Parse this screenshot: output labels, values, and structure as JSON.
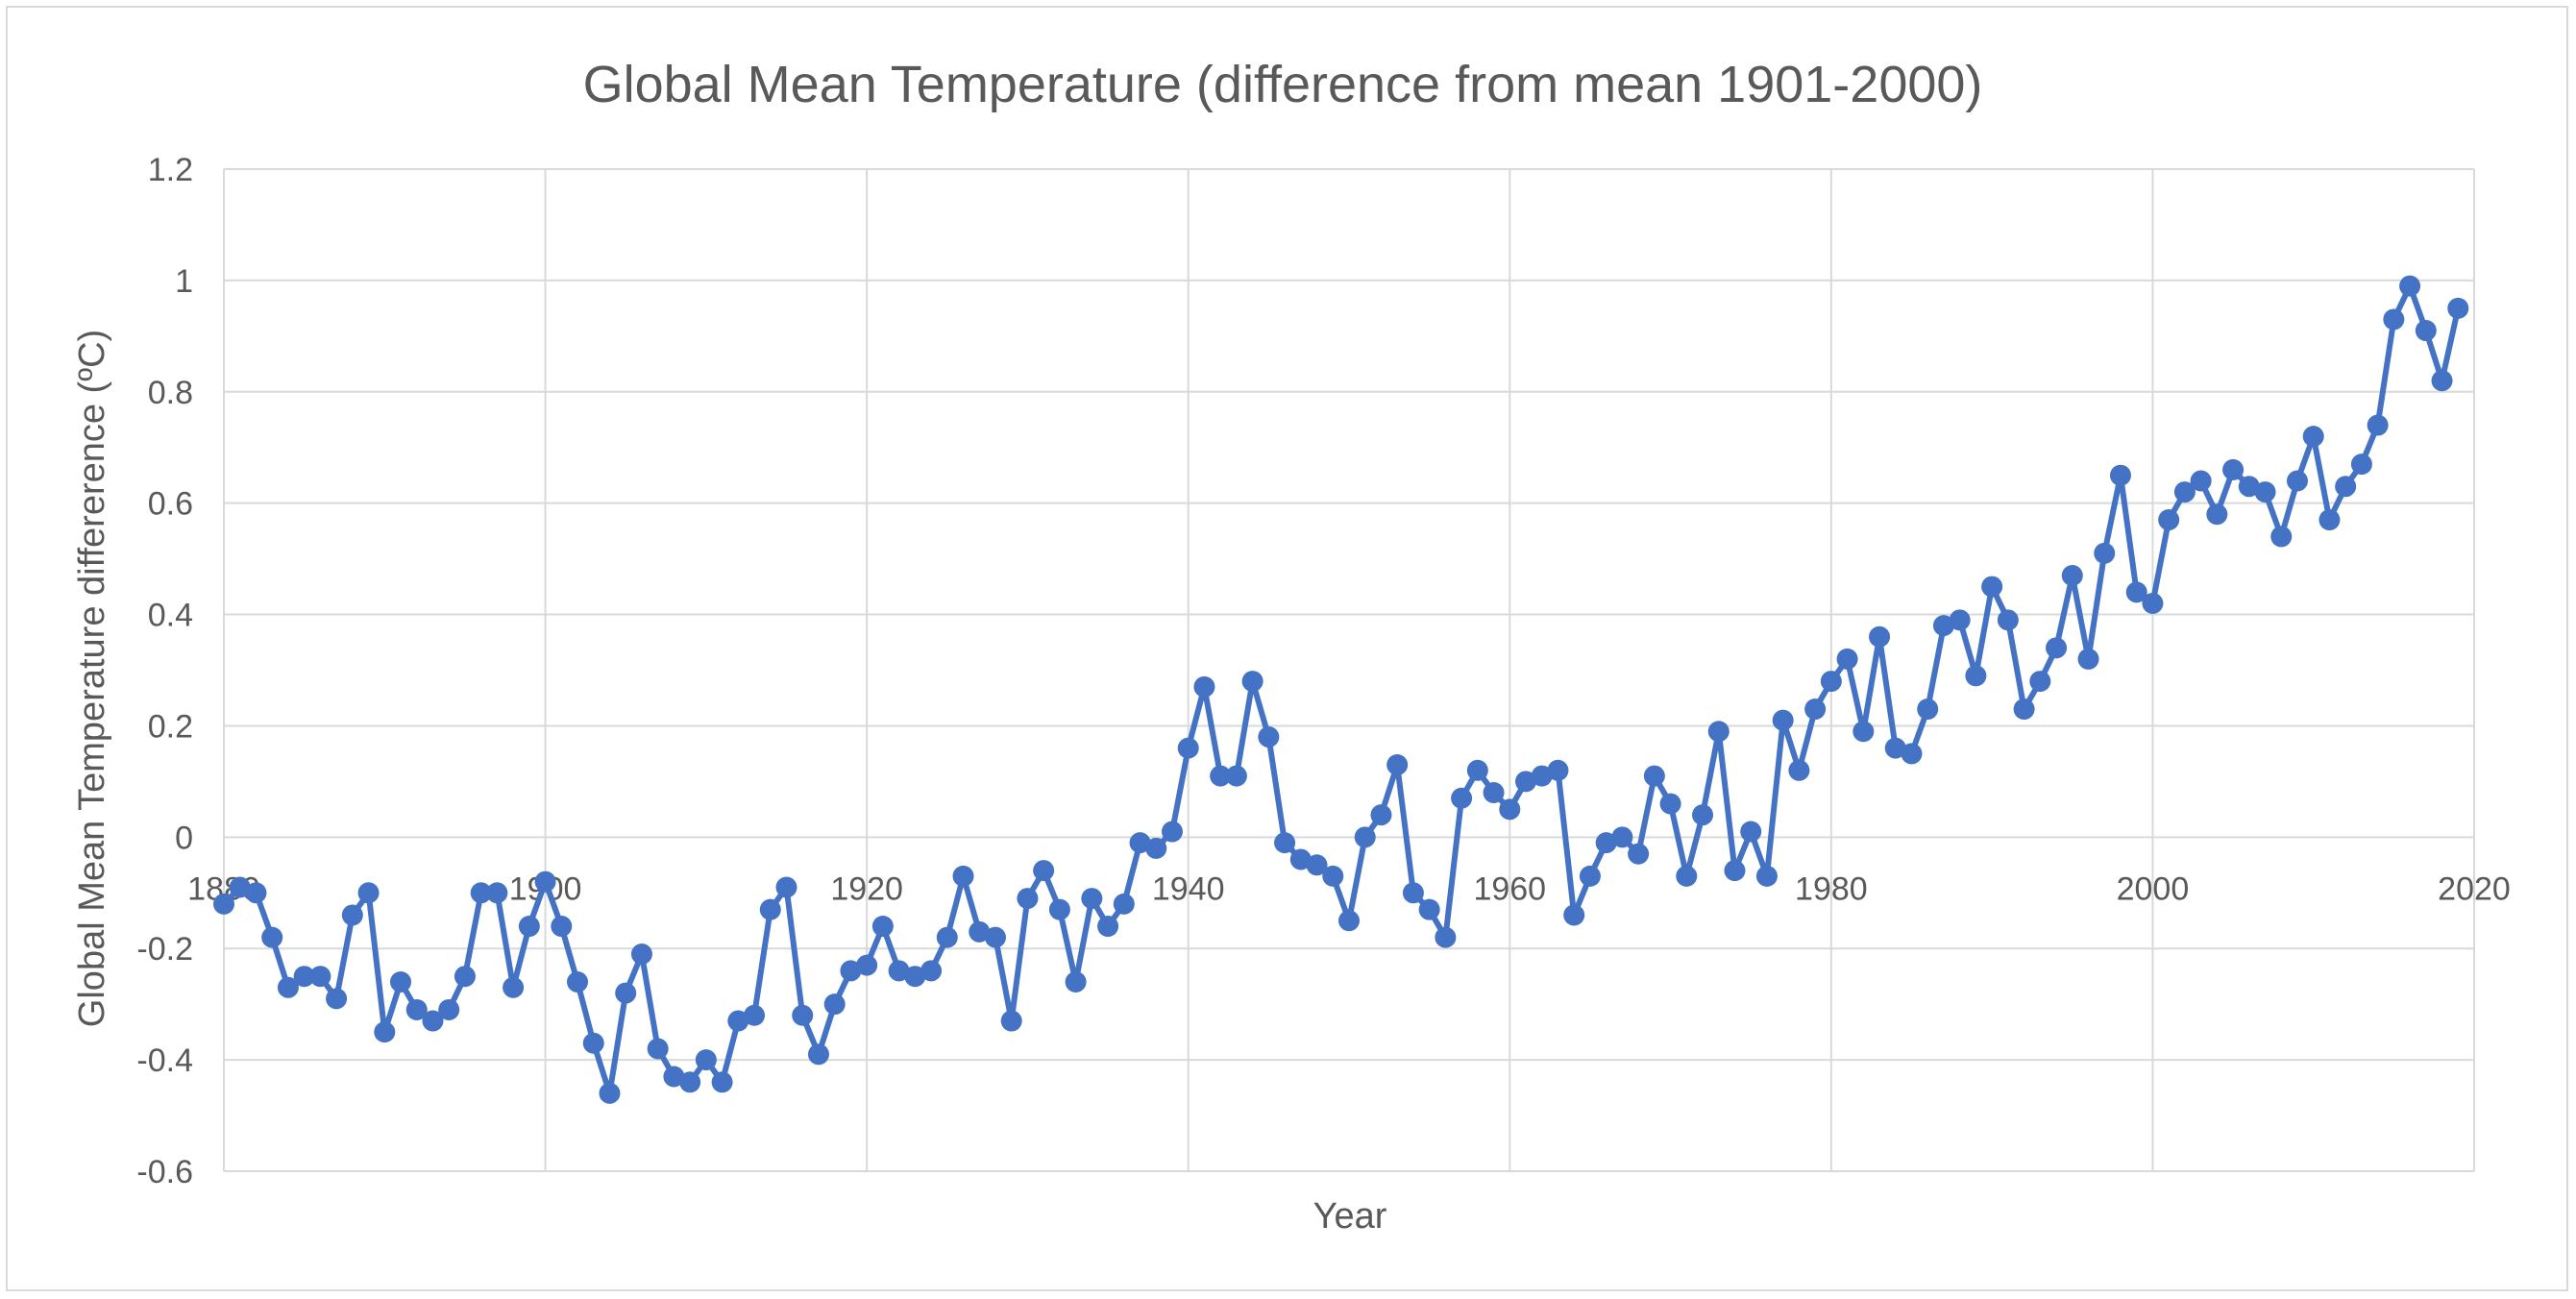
{
  "chart_data": {
    "type": "line",
    "title": "Global Mean Temperature (difference from mean 1901-2000)",
    "xlabel": "Year",
    "ylabel": "Global Mean Temperature differerence (ºC)",
    "xlim": [
      1880,
      2020
    ],
    "ylim": [
      -0.6,
      1.2
    ],
    "xticks": [
      1880,
      1900,
      1920,
      1940,
      1960,
      1980,
      2000,
      2020
    ],
    "yticks": [
      1.2,
      1,
      0.8,
      0.6,
      0.4,
      0.2,
      0,
      -0.2,
      -0.4,
      -0.6
    ],
    "xtick_labels": [
      "1880",
      "1900",
      "1920",
      "1940",
      "1960",
      "1980",
      "2000",
      "2020"
    ],
    "ytick_labels": [
      "1.2",
      "1",
      "0.8",
      "0.6",
      "0.4",
      "0.2",
      "0",
      "-0.2",
      "-0.4",
      "-0.6"
    ],
    "grid": true,
    "legend": "none",
    "series_color": "#4472c4",
    "series": [
      {
        "x": [
          1880,
          1881,
          1882,
          1883,
          1884,
          1885,
          1886,
          1887,
          1888,
          1889,
          1890,
          1891,
          1892,
          1893,
          1894,
          1895,
          1896,
          1897,
          1898,
          1899,
          1900,
          1901,
          1902,
          1903,
          1904,
          1905,
          1906,
          1907,
          1908,
          1909,
          1910,
          1911,
          1912,
          1913,
          1914,
          1915,
          1916,
          1917,
          1918,
          1919,
          1920,
          1921,
          1922,
          1923,
          1924,
          1925,
          1926,
          1927,
          1928,
          1929,
          1930,
          1931,
          1932,
          1933,
          1934,
          1935,
          1936,
          1937,
          1938,
          1939,
          1940,
          1941,
          1942,
          1943,
          1944,
          1945,
          1946,
          1947,
          1948,
          1949,
          1950,
          1951,
          1952,
          1953,
          1954,
          1955,
          1956,
          1957,
          1958,
          1959,
          1960,
          1961,
          1962,
          1963,
          1964,
          1965,
          1966,
          1967,
          1968,
          1969,
          1970,
          1971,
          1972,
          1973,
          1974,
          1975,
          1976,
          1977,
          1978,
          1979,
          1980,
          1981,
          1982,
          1983,
          1984,
          1985,
          1986,
          1987,
          1988,
          1989,
          1990,
          1991,
          1992,
          1993,
          1994,
          1995,
          1996,
          1997,
          1998,
          1999,
          2000,
          2001,
          2002,
          2003,
          2004,
          2005,
          2006,
          2007,
          2008,
          2009,
          2010,
          2011,
          2012,
          2013,
          2014,
          2015,
          2016,
          2017,
          2018,
          2019
        ],
        "y": [
          -0.12,
          -0.09,
          -0.1,
          -0.18,
          -0.27,
          -0.25,
          -0.25,
          -0.29,
          -0.14,
          -0.1,
          -0.35,
          -0.26,
          -0.31,
          -0.33,
          -0.31,
          -0.25,
          -0.1,
          -0.1,
          -0.27,
          -0.16,
          -0.08,
          -0.16,
          -0.26,
          -0.37,
          -0.46,
          -0.28,
          -0.21,
          -0.38,
          -0.43,
          -0.44,
          -0.4,
          -0.44,
          -0.33,
          -0.32,
          -0.13,
          -0.09,
          -0.32,
          -0.39,
          -0.3,
          -0.24,
          -0.23,
          -0.16,
          -0.24,
          -0.25,
          -0.24,
          -0.18,
          -0.07,
          -0.17,
          -0.18,
          -0.33,
          -0.11,
          -0.06,
          -0.13,
          -0.26,
          -0.11,
          -0.16,
          -0.12,
          -0.01,
          -0.02,
          0.01,
          0.16,
          0.27,
          0.11,
          0.11,
          0.28,
          0.18,
          -0.01,
          -0.04,
          -0.05,
          -0.07,
          -0.15,
          0.0,
          0.04,
          0.13,
          -0.1,
          -0.13,
          -0.18,
          0.07,
          0.12,
          0.08,
          0.05,
          0.1,
          0.11,
          0.12,
          -0.14,
          -0.07,
          -0.01,
          0.0,
          -0.03,
          0.11,
          0.06,
          -0.07,
          0.04,
          0.19,
          -0.06,
          0.01,
          -0.07,
          0.21,
          0.12,
          0.23,
          0.28,
          0.32,
          0.19,
          0.36,
          0.16,
          0.15,
          0.23,
          0.38,
          0.39,
          0.29,
          0.45,
          0.39,
          0.23,
          0.28,
          0.34,
          0.47,
          0.32,
          0.51,
          0.65,
          0.44,
          0.42,
          0.57,
          0.62,
          0.64,
          0.58,
          0.66,
          0.63,
          0.62,
          0.54,
          0.64,
          0.72,
          0.57,
          0.63,
          0.67,
          0.74,
          0.93,
          0.99,
          0.91,
          0.82,
          0.95
        ]
      }
    ]
  }
}
